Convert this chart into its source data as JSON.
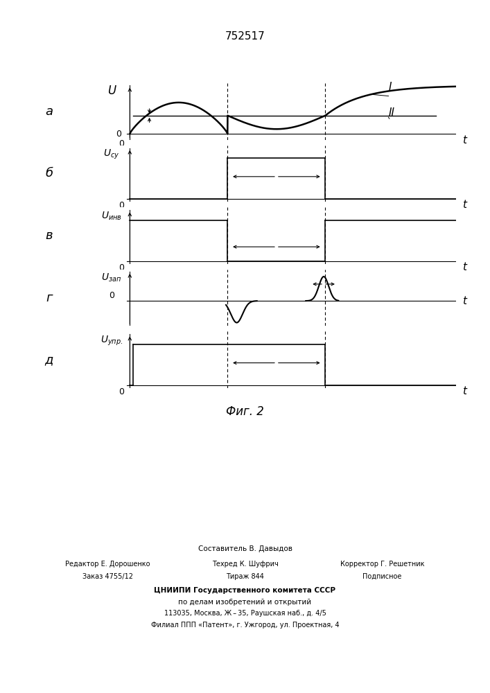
{
  "patent_number": "752517",
  "fig_label": "Фиг. 2",
  "bg_color": "#ffffff",
  "t1": 0.3,
  "t2": 0.6,
  "ref_level": 0.38,
  "subplot_labels_left": [
    "а",
    "б",
    "в",
    "г",
    "д"
  ],
  "footer_col1_line1": "Редактор Е. Дорошенко",
  "footer_col1_line2": "Заказ 4755/12",
  "footer_col2_line0": "Составитель В. Давыдов",
  "footer_col2_line1": "Техред К. Шуфрич",
  "footer_col2_line2": "Тираж 844",
  "footer_col3_line1": "Корректор Г. Решетник",
  "footer_col3_line2": "Подписное",
  "footer_bold": "ЦНИИПИ Государственного комитета СССР",
  "footer_line5": "по делам изобретений и открытий",
  "footer_line6": "113035, Москва, Ж – 35, Раушская наб., д. 4/5",
  "footer_line7": "Филиал ППП «Патент», г. Ужгород, ул. Проектная, 4"
}
